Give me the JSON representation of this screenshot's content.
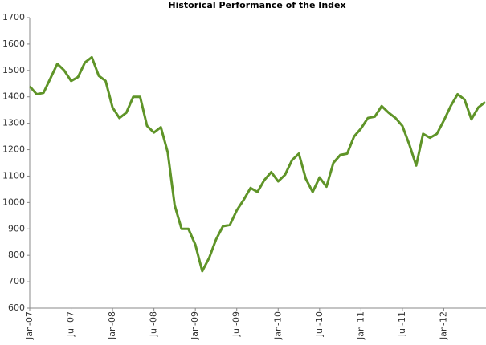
{
  "chart_data": {
    "type": "line",
    "title": "Historical Performance of the Index",
    "categories": [
      "Jan-07",
      null,
      null,
      null,
      null,
      null,
      "Jul-07",
      null,
      null,
      null,
      null,
      null,
      "Jan-08",
      null,
      null,
      null,
      null,
      null,
      "Jul-08",
      null,
      null,
      null,
      null,
      null,
      "Jan-09",
      null,
      null,
      null,
      null,
      null,
      "Jul-09",
      null,
      null,
      null,
      null,
      null,
      "Jan-10",
      null,
      null,
      null,
      null,
      null,
      "Jul-10",
      null,
      null,
      null,
      null,
      null,
      "Jan-11",
      null,
      null,
      null,
      null,
      null,
      "Jul-11",
      null,
      null,
      null,
      null,
      null,
      "Jan-12",
      null,
      null,
      null,
      null,
      null,
      null
    ],
    "series": [
      {
        "color": "#5f9428",
        "values": [
          1440,
          1410,
          1415,
          1470,
          1525,
          1500,
          1460,
          1475,
          1530,
          1550,
          1480,
          1460,
          1360,
          1320,
          1340,
          1400,
          1400,
          1290,
          1265,
          1285,
          1190,
          990,
          900,
          900,
          840,
          740,
          790,
          860,
          910,
          915,
          970,
          1010,
          1055,
          1040,
          1085,
          1115,
          1080,
          1105,
          1160,
          1185,
          1090,
          1040,
          1095,
          1060,
          1150,
          1180,
          1185,
          1250,
          1280,
          1320,
          1325,
          1365,
          1340,
          1320,
          1290,
          1220,
          1140,
          1260,
          1245,
          1260,
          1310,
          1365,
          1410,
          1390,
          1315,
          1360,
          1380
        ]
      }
    ],
    "ylim": [
      600,
      1700
    ],
    "yticks": [
      600,
      700,
      800,
      900,
      1000,
      1100,
      1200,
      1300,
      1400,
      1500,
      1600,
      1700
    ],
    "grid": false
  }
}
